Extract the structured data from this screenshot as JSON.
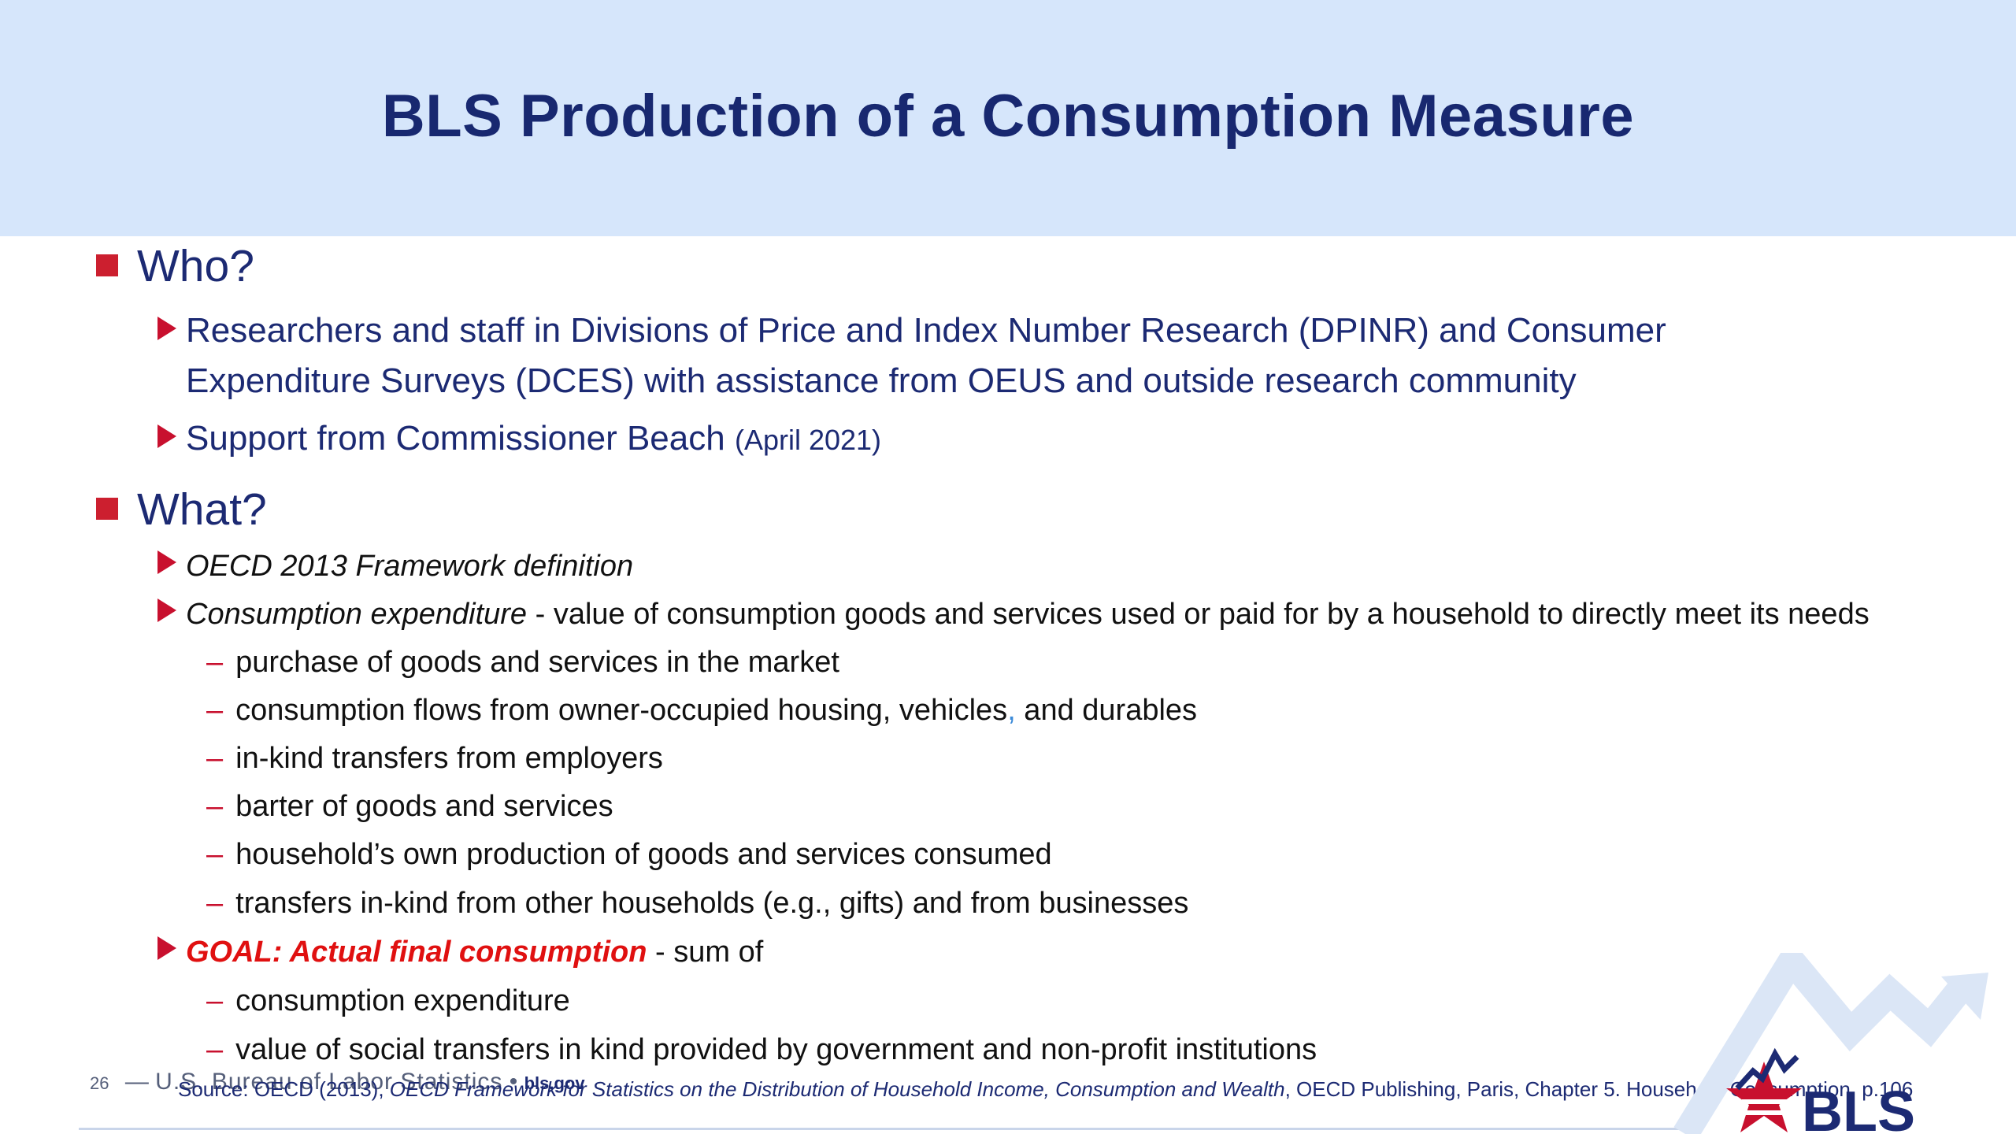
{
  "slide": {
    "title": "BLS Production of a Consumption Measure"
  },
  "who": {
    "heading": "Who?",
    "items": [
      "Researchers and staff in Divisions of Price and Index Number Research (DPINR) and Consumer Expenditure Surveys (DCES) with assistance from OEUS and outside research community",
      "Support from Commissioner Beach"
    ],
    "support_date": "(April 2021)"
  },
  "what": {
    "heading": "What?",
    "framework": "OECD 2013 Framework definition",
    "consumption_term": "Consumption expenditure",
    "consumption_def": " - value of consumption goods and services used or paid for by a household to directly meet its needs",
    "sub_items": [
      "purchase of goods and services in the market",
      "consumption flows from owner-occupied housing, vehicles",
      "in-kind transfers from employers",
      "barter of goods and services",
      "household’s own production of goods and services consumed",
      "transfers in-kind from other households (e.g., gifts) and from businesses"
    ],
    "sub_item_1_comma": ",",
    "sub_item_1_tail": " and durables",
    "goal_label": "GOAL: Actual final consumption",
    "goal_suffix": " -  sum of",
    "goal_items": [
      "consumption expenditure",
      "value of social transfers in kind provided by government and non-profit institutions"
    ]
  },
  "footer": {
    "page_number": "26",
    "separator": "—",
    "org": "U.S. Bureau of Labor Statistics",
    "bullet": "•",
    "website": "bls.gov",
    "source_prefix": "Source: OECD (2013), ",
    "source_title": "OECD Framework for Statistics on the Distribution of Household Income, Consumption and Wealth",
    "source_suffix": ", OECD Publishing, Paris, Chapter 5. Household Consumption, p.106"
  },
  "logo": {
    "text": "BLS",
    "icon": "bls-star-chart-logo"
  },
  "colors": {
    "header_bg": "#d6e6fb",
    "title": "#182870",
    "bullet_red": "#cc1f2f",
    "goal_red": "#e01010"
  }
}
